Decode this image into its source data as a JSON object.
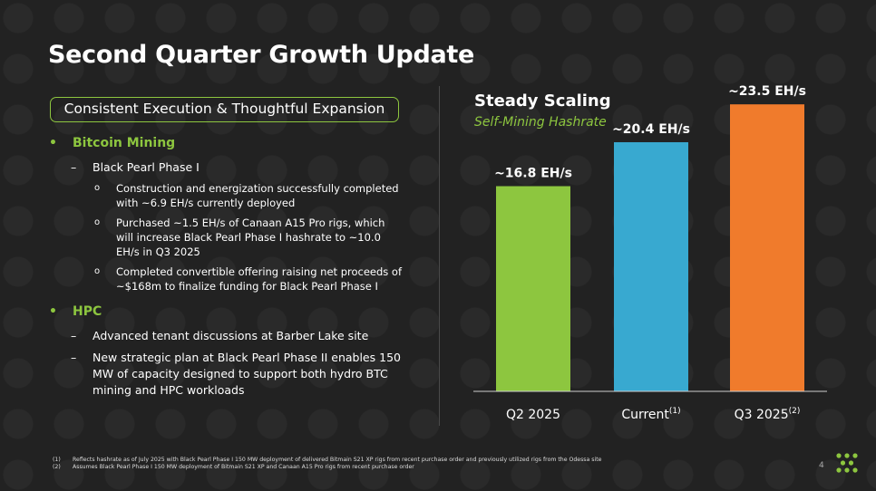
{
  "title": "Second Quarter Growth Update",
  "pill": "Consistent Execution & Thoughtful Expansion",
  "sections": [
    {
      "heading": "Bitcoin Mining",
      "items": [
        {
          "text": "Black Pearl Phase I",
          "subitems": [
            "Construction and energization successfully completed with ~6.9 EH/s currently deployed",
            "Purchased ~1.5 EH/s of Canaan A15 Pro rigs, which will increase Black Pearl Phase I hashrate to ~10.0 EH/s in Q3 2025",
            "Completed convertible offering raising net proceeds of ~$168m to finalize funding for Black Pearl Phase I"
          ]
        }
      ]
    },
    {
      "heading": "HPC",
      "items": [
        {
          "text": "Advanced tenant discussions at Barber Lake site",
          "subitems": []
        },
        {
          "text": "New strategic plan at Black Pearl Phase II enables 150 MW of capacity designed to support both hydro BTC mining and HPC workloads",
          "subitems": []
        }
      ]
    }
  ],
  "chart_data": {
    "type": "bar",
    "title": "Steady Scaling",
    "subtitle": "Self-Mining Hashrate",
    "categories": [
      "Q2 2025",
      "Current",
      "Q3 2025"
    ],
    "category_superscripts": [
      "",
      "(1)",
      "(2)"
    ],
    "values": [
      16.8,
      20.4,
      23.5
    ],
    "data_labels": [
      "~16.8 EH/s",
      "~20.4 EH/s",
      "~23.5 EH/s"
    ],
    "colors": [
      "#8dc63f",
      "#38a9d0",
      "#f07b2c"
    ],
    "ylim": [
      0,
      27
    ],
    "grid": false,
    "legend": "none"
  },
  "footnotes": [
    {
      "num": "(1)",
      "text": "Reflects hashrate as of July 2025 with Black Pearl Phase I 150 MW deployment of delivered Bitmain S21 XP rigs from recent purchase order and previously utilized rigs from the Odessa site"
    },
    {
      "num": "(2)",
      "text": "Assumes Black Pearl Phase I 150 MW deployment of Bitmain S21 XP and Canaan A15 Pro rigs from recent purchase order"
    }
  ],
  "page_number": "4",
  "bullets": {
    "level1": "•",
    "level2": "–",
    "level3": "o"
  },
  "colors": {
    "accent": "#8dc63f",
    "background": "#222222"
  }
}
